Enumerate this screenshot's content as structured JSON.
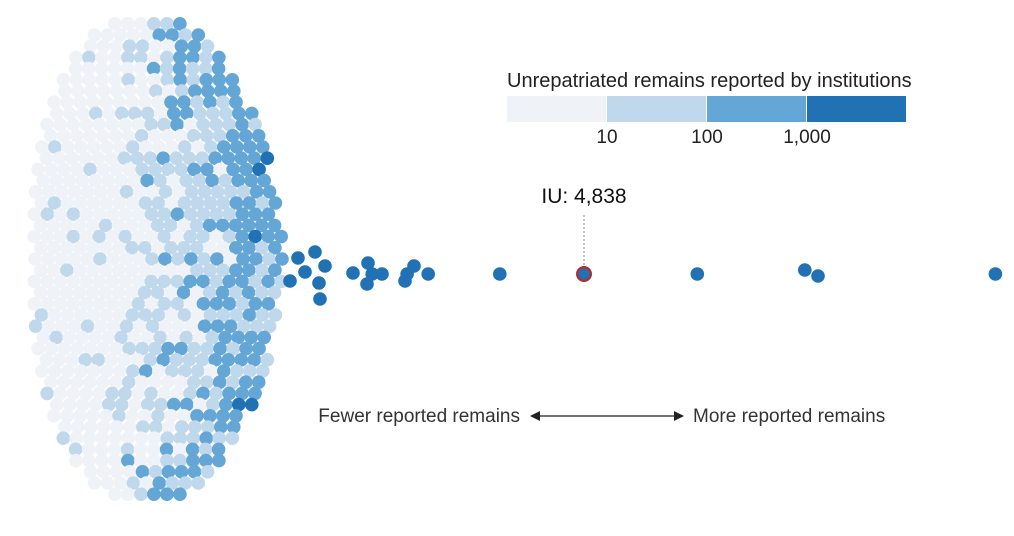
{
  "chart_data": {
    "type": "beeswarm",
    "title": "Unrepatriated remains reported by institutions",
    "legend": {
      "title": "Unrepatriated remains reported by institutions",
      "bins": [
        {
          "range": "under 10",
          "color": "#eff3f8"
        },
        {
          "range": "10 to 100",
          "color": "#c0d8eb"
        },
        {
          "range": "100 to 1,000",
          "color": "#64a6d5"
        },
        {
          "range": "1,000 and above",
          "color": "#2171b5"
        }
      ],
      "tick_labels": [
        "10",
        "100",
        "1,000"
      ]
    },
    "scale": "log",
    "highlight": {
      "label": "IU: 4,838",
      "value": 4838,
      "stroke": "#b03030"
    },
    "large_values": [
      2300,
      2600,
      2800,
      3600,
      4838,
      7200,
      10500,
      11000,
      20500
    ],
    "direction_labels": {
      "left": "Fewer reported remains",
      "right": "More reported remains"
    }
  }
}
